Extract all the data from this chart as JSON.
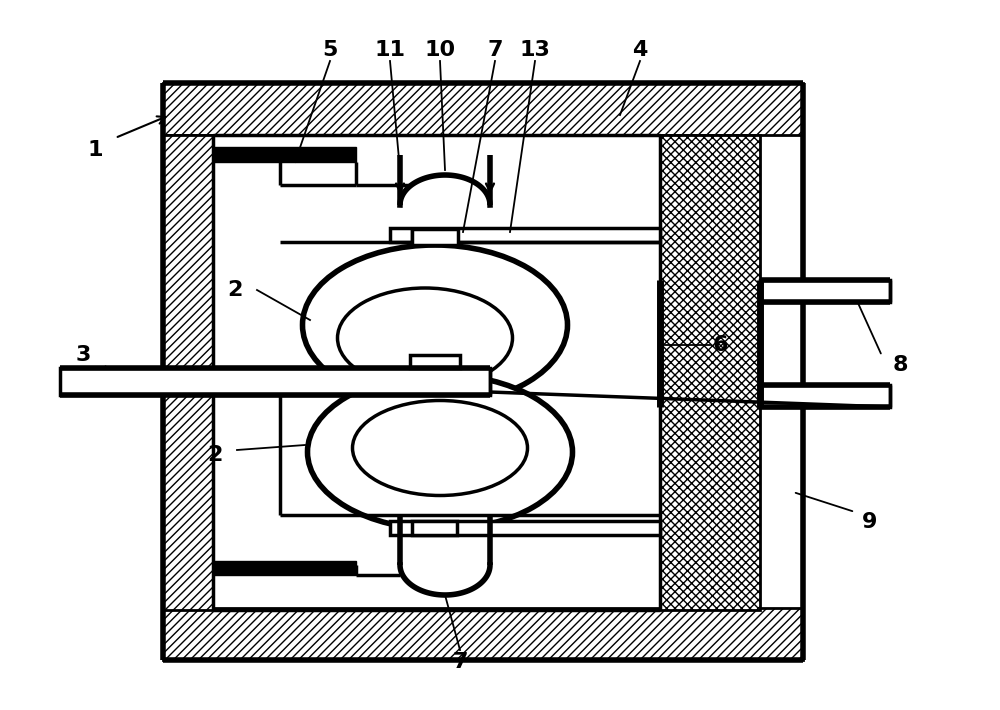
{
  "background_color": "#ffffff",
  "line_color": "#000000",
  "fig_width": 10.0,
  "fig_height": 7.1
}
